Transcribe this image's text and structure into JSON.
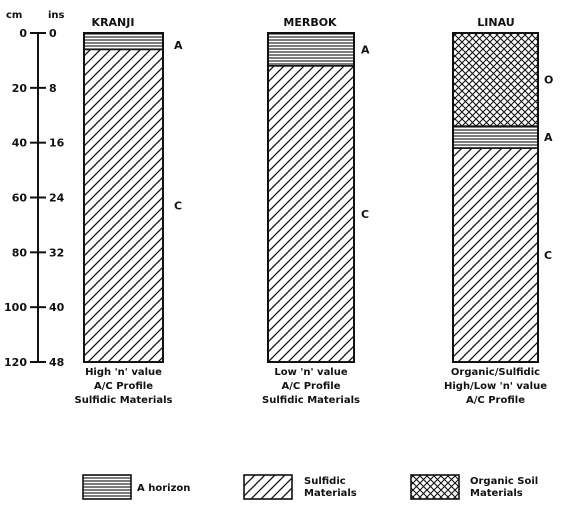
{
  "axis": {
    "unit_cm": "cm",
    "unit_ins": "ins",
    "cm_ticks": [
      "0",
      "20",
      "40",
      "60",
      "80",
      "100",
      "120"
    ],
    "ins_ticks": [
      "0",
      "8",
      "16",
      "24",
      "32",
      "40",
      "48"
    ]
  },
  "profiles": [
    {
      "name": "KRANJI",
      "horizons": [
        {
          "label": "A",
          "material": "A horizon",
          "top_cm": 0,
          "bottom_cm": 6
        },
        {
          "label": "C",
          "material": "Sulfidic Materials",
          "top_cm": 6,
          "bottom_cm": 120
        }
      ],
      "caption": [
        "High 'n' value",
        "A/C Profile",
        "Sulfidic Materials"
      ]
    },
    {
      "name": "MERBOK",
      "horizons": [
        {
          "label": "A",
          "material": "A horizon",
          "top_cm": 0,
          "bottom_cm": 12
        },
        {
          "label": "C",
          "material": "Sulfidic Materials",
          "top_cm": 12,
          "bottom_cm": 120
        }
      ],
      "caption": [
        "Low 'n' value",
        "A/C Profile",
        "Sulfidic Materials"
      ]
    },
    {
      "name": "LINAU",
      "horizons": [
        {
          "label": "O",
          "material": "Organic Soil Materials",
          "top_cm": 0,
          "bottom_cm": 34
        },
        {
          "label": "A",
          "material": "A horizon",
          "top_cm": 34,
          "bottom_cm": 42
        },
        {
          "label": "C",
          "material": "Sulfidic Materials",
          "top_cm": 42,
          "bottom_cm": 120
        }
      ],
      "caption": [
        "Organic/Sulfidic",
        "High/Low 'n' value",
        "A/C Profile"
      ]
    }
  ],
  "legend": [
    {
      "pattern": "hstripe",
      "label": [
        "A horizon"
      ]
    },
    {
      "pattern": "diag",
      "label": [
        "Sulfidic",
        "Materials"
      ]
    },
    {
      "pattern": "cross",
      "label": [
        "Organic Soil",
        "Materials"
      ]
    }
  ]
}
